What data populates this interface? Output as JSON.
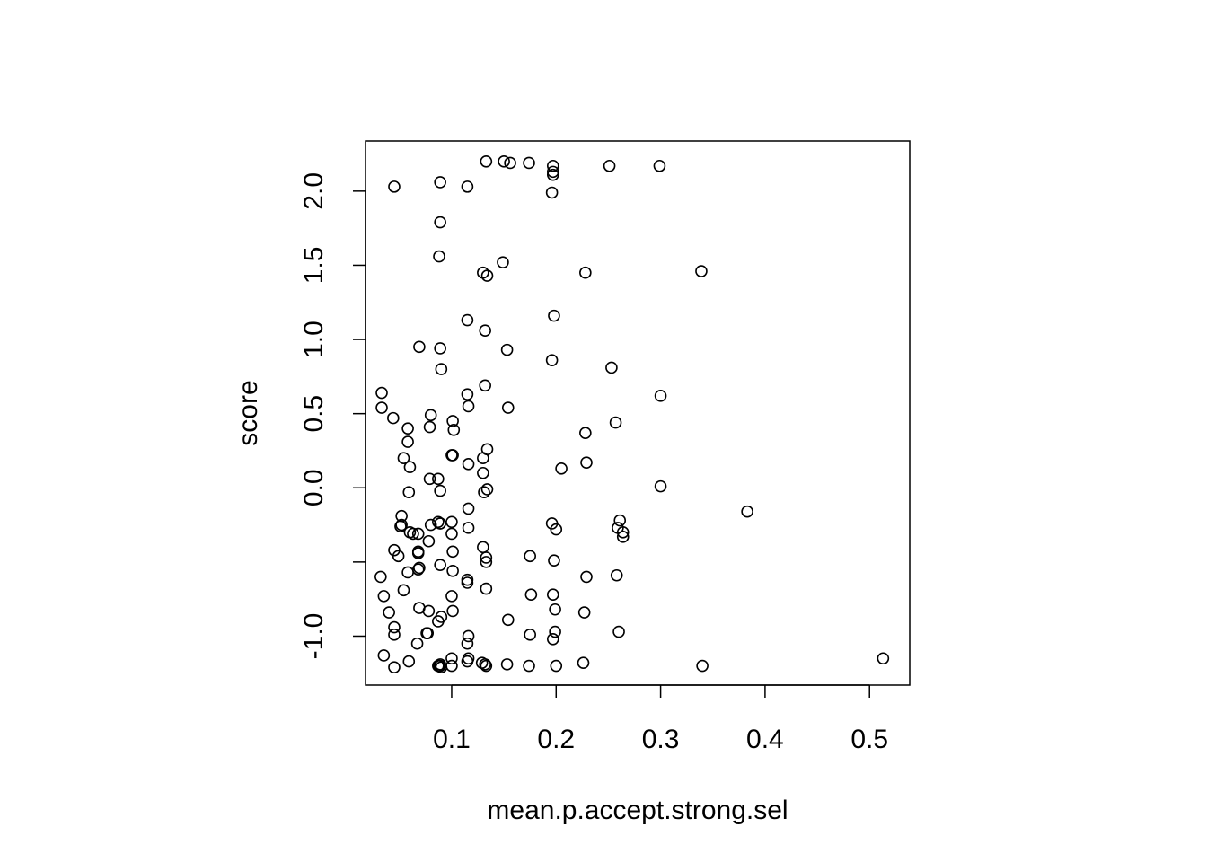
{
  "chart_data": {
    "type": "scatter",
    "title": "",
    "xlabel": "mean.p.accept.strong.sel",
    "ylabel": "score",
    "xlim": [
      0.0175,
      0.5385
    ],
    "ylim": [
      -1.33,
      2.338
    ],
    "xticks": [
      0.1,
      0.2,
      0.3,
      0.4,
      0.5
    ],
    "xtick_labels": [
      "0.1",
      "0.2",
      "0.3",
      "0.4",
      "0.5"
    ],
    "yticks": [
      -1.0,
      -0.5,
      0.0,
      0.5,
      1.0,
      1.5,
      2.0
    ],
    "ytick_labels": [
      "-1.0",
      "",
      "0.0",
      "0.5",
      "1.0",
      "1.5",
      "2.0"
    ],
    "grid": false,
    "marker": "open-circle",
    "marker_color": "#000000",
    "series": [
      {
        "x": [
          0.133,
          0.15,
          0.156,
          0.174,
          0.197,
          0.197,
          0.197,
          0.251,
          0.299,
          0.045,
          0.089,
          0.115,
          0.196,
          0.089,
          0.088,
          0.13,
          0.134,
          0.149,
          0.228,
          0.339,
          0.115,
          0.198,
          0.132,
          0.153,
          0.069,
          0.089,
          0.196,
          0.253,
          0.09,
          0.033,
          0.115,
          0.132,
          0.3,
          0.033,
          0.116,
          0.154,
          0.044,
          0.08,
          0.101,
          0.058,
          0.079,
          0.102,
          0.228,
          0.257,
          0.058,
          0.134,
          0.054,
          0.1,
          0.101,
          0.13,
          0.229,
          0.116,
          0.06,
          0.205,
          0.13,
          0.079,
          0.087,
          0.089,
          0.3,
          0.134,
          0.131,
          0.059,
          0.383,
          0.116,
          0.052,
          0.261,
          0.089,
          0.089,
          0.087,
          0.08,
          0.1,
          0.196,
          0.052,
          0.051,
          0.259,
          0.116,
          0.2,
          0.06,
          0.063,
          0.068,
          0.1,
          0.264,
          0.264,
          0.078,
          0.045,
          0.068,
          0.068,
          0.101,
          0.13,
          0.049,
          0.175,
          0.133,
          0.133,
          0.198,
          0.069,
          0.089,
          0.058,
          0.101,
          0.068,
          0.115,
          0.258,
          0.229,
          0.032,
          0.115,
          0.054,
          0.133,
          0.176,
          0.197,
          0.035,
          0.1,
          0.069,
          0.078,
          0.199,
          0.04,
          0.101,
          0.227,
          0.09,
          0.154,
          0.087,
          0.045,
          0.045,
          0.077,
          0.076,
          0.175,
          0.199,
          0.26,
          0.116,
          0.197,
          0.115,
          0.067,
          0.035,
          0.1,
          0.116,
          0.513,
          0.059,
          0.129,
          0.115,
          0.226,
          0.087,
          0.089,
          0.132,
          0.153,
          0.174,
          0.1,
          0.088,
          0.34,
          0.2,
          0.045,
          0.089,
          0.088,
          0.133,
          0.09
        ],
        "y": [
          2.2,
          2.2,
          2.19,
          2.19,
          2.17,
          2.13,
          2.11,
          2.17,
          2.17,
          2.03,
          2.06,
          2.03,
          1.99,
          1.79,
          1.56,
          1.45,
          1.43,
          1.52,
          1.45,
          1.46,
          1.13,
          1.16,
          1.06,
          0.93,
          0.95,
          0.94,
          0.86,
          0.81,
          0.8,
          0.64,
          0.63,
          0.69,
          0.62,
          0.54,
          0.55,
          0.54,
          0.47,
          0.49,
          0.45,
          0.4,
          0.41,
          0.39,
          0.37,
          0.44,
          0.31,
          0.26,
          0.2,
          0.22,
          0.22,
          0.2,
          0.17,
          0.16,
          0.14,
          0.13,
          0.1,
          0.06,
          0.06,
          -0.02,
          0.01,
          -0.01,
          -0.03,
          -0.03,
          -0.16,
          -0.14,
          -0.19,
          -0.22,
          -0.24,
          -0.24,
          -0.23,
          -0.25,
          -0.23,
          -0.24,
          -0.25,
          -0.26,
          -0.27,
          -0.27,
          -0.28,
          -0.3,
          -0.31,
          -0.31,
          -0.31,
          -0.3,
          -0.33,
          -0.36,
          -0.42,
          -0.43,
          -0.44,
          -0.43,
          -0.4,
          -0.46,
          -0.46,
          -0.47,
          -0.5,
          -0.49,
          -0.54,
          -0.52,
          -0.57,
          -0.56,
          -0.55,
          -0.62,
          -0.59,
          -0.6,
          -0.6,
          -0.64,
          -0.69,
          -0.68,
          -0.72,
          -0.72,
          -0.73,
          -0.73,
          -0.81,
          -0.83,
          -0.82,
          -0.84,
          -0.83,
          -0.84,
          -0.87,
          -0.89,
          -0.9,
          -0.94,
          -0.99,
          -0.98,
          -0.98,
          -0.99,
          -0.97,
          -0.97,
          -1.0,
          -1.02,
          -1.05,
          -1.05,
          -1.13,
          -1.15,
          -1.15,
          -1.15,
          -1.17,
          -1.18,
          -1.17,
          -1.18,
          -1.2,
          -1.19,
          -1.19,
          -1.19,
          -1.2,
          -1.2,
          -1.2,
          -1.2,
          -1.2,
          -1.21,
          -1.2,
          -1.2,
          -1.2,
          -1.21
        ]
      }
    ]
  }
}
